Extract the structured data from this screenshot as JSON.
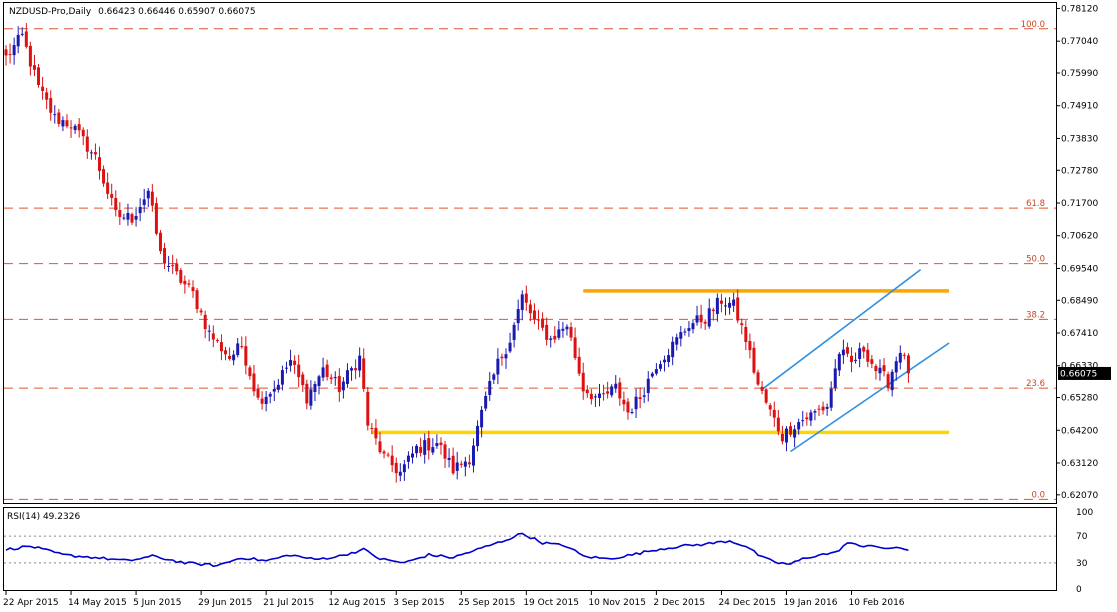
{
  "header": {
    "symbol": "NZDUSD-Pro,Daily",
    "ohlc": "0.66423 0.66446 0.65907 0.66075"
  },
  "colors": {
    "bull": "#1a1ab0",
    "bear": "#dd1111",
    "fib": "#e0542e",
    "resistance": "#ffa500",
    "support": "#ffd500",
    "channel": "#2e8fe0",
    "rsi": "#0000cc",
    "grid": "#000000"
  },
  "chart_data": [
    {
      "type": "candlestick",
      "title": "NZDUSD-Pro,Daily",
      "ohlc_label": "0.66423 0.66446 0.65907 0.66075",
      "y_ticks": [
        "0.78120",
        "0.77040",
        "0.75990",
        "0.74910",
        "0.73830",
        "0.72780",
        "0.71700",
        "0.70620",
        "0.69540",
        "0.68490",
        "0.67410",
        "0.66330",
        "0.65280",
        "0.64200",
        "0.63120",
        "0.62070"
      ],
      "y_range": [
        0.618,
        0.783
      ],
      "current_price": "0.66075",
      "x_ticks": [
        "22 Apr 2015",
        "14 May 2015",
        "5 Jun 2015",
        "29 Jun 2015",
        "21 Jul 2015",
        "12 Aug 2015",
        "3 Sep 2015",
        "25 Sep 2015",
        "19 Oct 2015",
        "10 Nov 2015",
        "2 Dec 2015",
        "24 Dec 2015",
        "19 Jan 2016",
        "10 Feb 2016"
      ],
      "x_tick_index": [
        0,
        16,
        32,
        48,
        64,
        80,
        96,
        112,
        128,
        144,
        160,
        176,
        192,
        208
      ],
      "fib_levels": [
        {
          "label": "100.0",
          "price": 0.7745
        },
        {
          "label": "61.8",
          "price": 0.7153
        },
        {
          "label": "50.0",
          "price": 0.697
        },
        {
          "label": "38.2",
          "price": 0.6786
        },
        {
          "label": "23.6",
          "price": 0.6559
        },
        {
          "label": "0.0",
          "price": 0.6192
        }
      ],
      "horizontal_levels": [
        {
          "price": 0.688,
          "from_index": 142,
          "to_index": 232
        },
        {
          "price": 0.6413,
          "from_index": 90,
          "to_index": 232
        }
      ],
      "channel_lines": [
        {
          "from": [
            186,
            0.6555
          ],
          "to": [
            225,
            0.695
          ]
        },
        {
          "from": [
            193,
            0.635
          ],
          "to": [
            232,
            0.6708
          ]
        }
      ],
      "anchors": [
        {
          "i": 0,
          "p": 0.765
        },
        {
          "i": 4,
          "p": 0.772
        },
        {
          "i": 8,
          "p": 0.755
        },
        {
          "i": 12,
          "p": 0.745
        },
        {
          "i": 16,
          "p": 0.743
        },
        {
          "i": 22,
          "p": 0.732
        },
        {
          "i": 27,
          "p": 0.713
        },
        {
          "i": 31,
          "p": 0.712
        },
        {
          "i": 35,
          "p": 0.721
        },
        {
          "i": 38,
          "p": 0.7
        },
        {
          "i": 42,
          "p": 0.693
        },
        {
          "i": 46,
          "p": 0.687
        },
        {
          "i": 50,
          "p": 0.674
        },
        {
          "i": 55,
          "p": 0.666
        },
        {
          "i": 58,
          "p": 0.67
        },
        {
          "i": 62,
          "p": 0.652
        },
        {
          "i": 66,
          "p": 0.656
        },
        {
          "i": 70,
          "p": 0.665
        },
        {
          "i": 74,
          "p": 0.653
        },
        {
          "i": 78,
          "p": 0.662
        },
        {
          "i": 82,
          "p": 0.656
        },
        {
          "i": 87,
          "p": 0.666
        },
        {
          "i": 89,
          "p": 0.644
        },
        {
          "i": 93,
          "p": 0.633
        },
        {
          "i": 97,
          "p": 0.628
        },
        {
          "i": 101,
          "p": 0.636
        },
        {
          "i": 106,
          "p": 0.638
        },
        {
          "i": 110,
          "p": 0.629
        },
        {
          "i": 114,
          "p": 0.633
        },
        {
          "i": 118,
          "p": 0.652
        },
        {
          "i": 121,
          "p": 0.664
        },
        {
          "i": 124,
          "p": 0.672
        },
        {
          "i": 127,
          "p": 0.686
        },
        {
          "i": 130,
          "p": 0.678
        },
        {
          "i": 134,
          "p": 0.672
        },
        {
          "i": 138,
          "p": 0.677
        },
        {
          "i": 142,
          "p": 0.656
        },
        {
          "i": 146,
          "p": 0.652
        },
        {
          "i": 150,
          "p": 0.656
        },
        {
          "i": 153,
          "p": 0.648
        },
        {
          "i": 156,
          "p": 0.653
        },
        {
          "i": 160,
          "p": 0.664
        },
        {
          "i": 164,
          "p": 0.67
        },
        {
          "i": 168,
          "p": 0.677
        },
        {
          "i": 172,
          "p": 0.679
        },
        {
          "i": 176,
          "p": 0.685
        },
        {
          "i": 179,
          "p": 0.683
        },
        {
          "i": 182,
          "p": 0.672
        },
        {
          "i": 185,
          "p": 0.657
        },
        {
          "i": 188,
          "p": 0.648
        },
        {
          "i": 191,
          "p": 0.64
        },
        {
          "i": 194,
          "p": 0.644
        },
        {
          "i": 198,
          "p": 0.647
        },
        {
          "i": 202,
          "p": 0.65
        },
        {
          "i": 205,
          "p": 0.668
        },
        {
          "i": 208,
          "p": 0.664
        },
        {
          "i": 211,
          "p": 0.669
        },
        {
          "i": 214,
          "p": 0.662
        },
        {
          "i": 217,
          "p": 0.658
        },
        {
          "i": 220,
          "p": 0.669
        },
        {
          "i": 222,
          "p": 0.6608
        }
      ],
      "total_bars": 223
    },
    {
      "type": "line",
      "title": "RSI(14) 49.2326",
      "y_ticks": [
        "100",
        "70",
        "30",
        "0"
      ],
      "levels": [
        70,
        30
      ],
      "y_range": [
        0,
        100
      ],
      "rsi_anchors": [
        {
          "i": 0,
          "v": 50
        },
        {
          "i": 6,
          "v": 55
        },
        {
          "i": 14,
          "v": 42
        },
        {
          "i": 22,
          "v": 38
        },
        {
          "i": 30,
          "v": 33
        },
        {
          "i": 36,
          "v": 40
        },
        {
          "i": 44,
          "v": 30
        },
        {
          "i": 52,
          "v": 26
        },
        {
          "i": 58,
          "v": 38
        },
        {
          "i": 64,
          "v": 33
        },
        {
          "i": 70,
          "v": 42
        },
        {
          "i": 76,
          "v": 35
        },
        {
          "i": 82,
          "v": 40
        },
        {
          "i": 88,
          "v": 50
        },
        {
          "i": 92,
          "v": 36
        },
        {
          "i": 98,
          "v": 30
        },
        {
          "i": 104,
          "v": 42
        },
        {
          "i": 110,
          "v": 38
        },
        {
          "i": 116,
          "v": 50
        },
        {
          "i": 122,
          "v": 62
        },
        {
          "i": 127,
          "v": 74
        },
        {
          "i": 132,
          "v": 60
        },
        {
          "i": 138,
          "v": 55
        },
        {
          "i": 142,
          "v": 40
        },
        {
          "i": 148,
          "v": 36
        },
        {
          "i": 154,
          "v": 42
        },
        {
          "i": 160,
          "v": 50
        },
        {
          "i": 166,
          "v": 55
        },
        {
          "i": 172,
          "v": 58
        },
        {
          "i": 178,
          "v": 63
        },
        {
          "i": 182,
          "v": 55
        },
        {
          "i": 186,
          "v": 38
        },
        {
          "i": 190,
          "v": 30
        },
        {
          "i": 193,
          "v": 28
        },
        {
          "i": 196,
          "v": 36
        },
        {
          "i": 200,
          "v": 42
        },
        {
          "i": 204,
          "v": 45
        },
        {
          "i": 207,
          "v": 60
        },
        {
          "i": 210,
          "v": 55
        },
        {
          "i": 213,
          "v": 57
        },
        {
          "i": 216,
          "v": 50
        },
        {
          "i": 219,
          "v": 54
        },
        {
          "i": 222,
          "v": 49
        }
      ],
      "value": "49.2326"
    }
  ]
}
